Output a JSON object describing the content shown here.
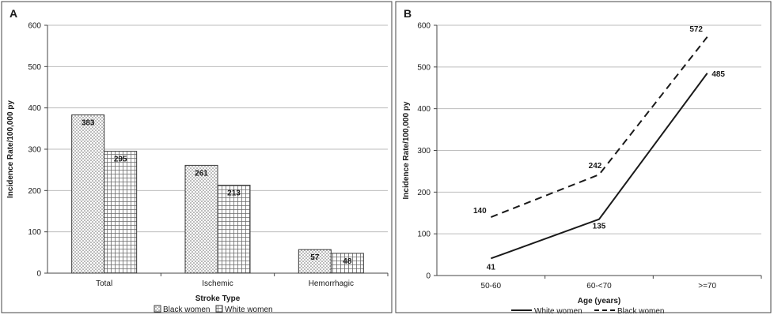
{
  "colors": {
    "grid": "#bdbdbd",
    "axis": "#444444",
    "bar_edge": "#3a3a3a",
    "line": "#1a1a1a",
    "page": "#ffffff"
  },
  "chart_data": [
    {
      "panel": "A",
      "type": "bar",
      "title": "",
      "xlabel": "Stroke Type",
      "ylabel": "Incidence Rate/100,000 py",
      "categories": [
        "Total",
        "Ischemic",
        "Hemorrhagic"
      ],
      "series": [
        {
          "name": "Black women",
          "values": [
            383,
            261,
            57
          ],
          "pattern": "dotted"
        },
        {
          "name": "White women",
          "values": [
            295,
            213,
            48
          ],
          "pattern": "grid"
        }
      ],
      "ylim": [
        0,
        600
      ],
      "yticks": [
        0,
        100,
        200,
        300,
        400,
        500,
        600
      ],
      "grid": true,
      "legend": "bottom-center"
    },
    {
      "panel": "B",
      "type": "line",
      "title": "",
      "xlabel": "Age (years)",
      "ylabel": "Incidence Rate/100,000 py",
      "categories": [
        "50-60",
        "60-<70",
        ">=70"
      ],
      "series": [
        {
          "name": "White women",
          "values": [
            41,
            135,
            485
          ],
          "style": "solid"
        },
        {
          "name": "Black women",
          "values": [
            140,
            242,
            572
          ],
          "style": "dashed"
        }
      ],
      "ylim": [
        0,
        600
      ],
      "yticks": [
        0,
        100,
        200,
        300,
        400,
        500,
        600
      ],
      "grid": true,
      "legend": "bottom-center"
    }
  ]
}
